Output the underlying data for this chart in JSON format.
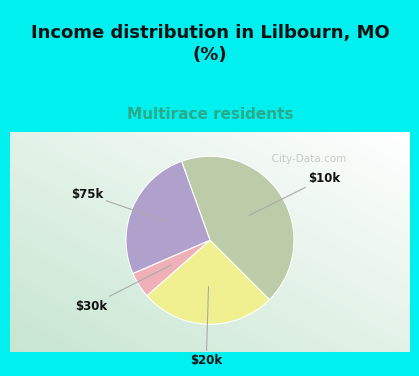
{
  "title": "Income distribution in Lilbourn, MO\n(%)",
  "subtitle": "Multirace residents",
  "slices": [
    {
      "label": "$10k",
      "value": 43,
      "color": "#bccba8"
    },
    {
      "label": "$75k",
      "value": 26,
      "color": "#b0a0cc"
    },
    {
      "label": "$30k",
      "value": 5,
      "color": "#f0b0b8"
    },
    {
      "label": "$20k",
      "value": 26,
      "color": "#f0f090"
    }
  ],
  "bg_cyan": "#00f0f0",
  "title_color": "#111111",
  "subtitle_color": "#2aaa88",
  "watermark": "City-Data.com",
  "label_color": "#111111",
  "label_fontsize": 8.5,
  "title_fontsize": 13,
  "subtitle_fontsize": 11,
  "pie_edge_color": "#ffffff",
  "arrow_color": "#aaaaaa"
}
